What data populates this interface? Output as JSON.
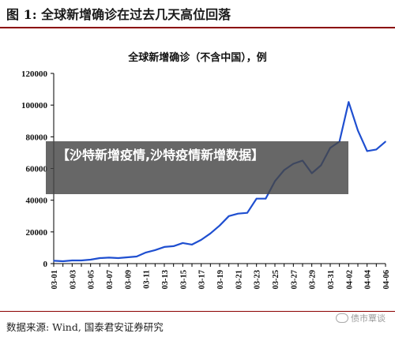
{
  "figure": {
    "title": "图 1: 全球新增确诊在过去几天高位回落",
    "source": "数据来源: Wind, 国泰君安证券研究"
  },
  "overlay": {
    "text": "【沙特新增疫情,沙特疫情新增数据】"
  },
  "watermark": {
    "text": "债市覃谈",
    "icon": "wechat-icon"
  },
  "chart_data": {
    "type": "line",
    "title": "全球新增确诊（不含中国），例",
    "xlabel": "",
    "ylabel": "",
    "ylim": [
      0,
      120000
    ],
    "yticks": [
      0,
      20000,
      40000,
      60000,
      80000,
      100000,
      120000
    ],
    "ytick_labels": [
      "0",
      "20000",
      "40000",
      "60000",
      "80000",
      "100000",
      "120000"
    ],
    "x_tick_labels": [
      "03-01",
      "03-03",
      "03-05",
      "03-07",
      "03-09",
      "03-11",
      "03-13",
      "03-15",
      "03-17",
      "03-19",
      "03-21",
      "03-23",
      "03-25",
      "03-27",
      "03-29",
      "03-31",
      "04-02",
      "04-04",
      "04-06"
    ],
    "grid": false,
    "legend": "none",
    "series": [
      {
        "color": "#1f4fd0",
        "x": [
          "03-01",
          "03-02",
          "03-03",
          "03-04",
          "03-05",
          "03-06",
          "03-07",
          "03-08",
          "03-09",
          "03-10",
          "03-11",
          "03-12",
          "03-13",
          "03-14",
          "03-15",
          "03-16",
          "03-17",
          "03-18",
          "03-19",
          "03-20",
          "03-21",
          "03-22",
          "03-23",
          "03-24",
          "03-25",
          "03-26",
          "03-27",
          "03-28",
          "03-29",
          "03-30",
          "03-31",
          "04-01",
          "04-02",
          "04-03",
          "04-04",
          "04-05",
          "04-06"
        ],
        "values": [
          1800,
          1500,
          2000,
          2000,
          2500,
          3500,
          3800,
          3500,
          4000,
          4500,
          7000,
          8500,
          10500,
          11000,
          13000,
          12000,
          15000,
          19000,
          24000,
          30000,
          31500,
          32000,
          41000,
          41000,
          52000,
          59000,
          63000,
          65000,
          57000,
          62000,
          73000,
          77000,
          102000,
          84000,
          71000,
          72000,
          77000
        ]
      }
    ]
  }
}
